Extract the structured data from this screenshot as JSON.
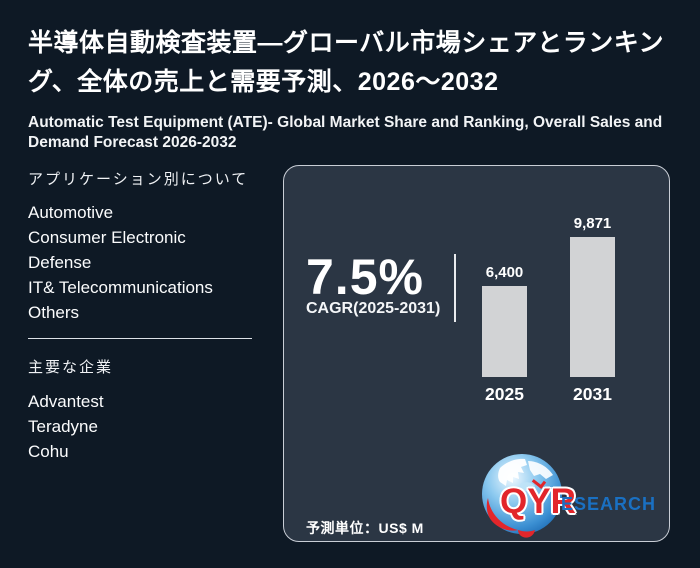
{
  "header": {
    "title_jp": "半導体自動検査装置—グローバル市場シェアとランキング、全体の売上と需要予測、2026～2032",
    "title_en": "Automatic Test Equipment (ATE)- Global Market Share and Ranking, Overall Sales and Demand Forecast 2026-2032"
  },
  "sidebar": {
    "applications_header": "アプリケーション別について",
    "applications": [
      "Automotive",
      "Consumer Electronic",
      "Defense",
      "IT& Telecommunications",
      "Others"
    ],
    "companies_header": "主要な企業",
    "companies": [
      "Advantest",
      "Teradyne",
      "Cohu"
    ]
  },
  "panel": {
    "cagr_value": "7.5%",
    "cagr_label": "CAGR(2025-2031)",
    "unit_note": "予測単位：US$ M",
    "logo": {
      "qyr": "QYR",
      "research": "ESEARCH"
    }
  },
  "chart_data": {
    "type": "bar",
    "categories": [
      "2025",
      "2031"
    ],
    "values": [
      6400,
      9871
    ],
    "value_labels": [
      "6,400",
      "9,871"
    ],
    "title": "7.5% CAGR(2025-2031)",
    "xlabel": "",
    "ylabel": "",
    "unit": "US$ M",
    "ylim": [
      0,
      9871
    ],
    "grid": false,
    "legend": false,
    "bar_color": "#d2d3d5"
  },
  "colors": {
    "bg": "#0e1925",
    "panel": "#2b3644",
    "panel_border": "#c9ced6",
    "bar_color": "#d2d3d5",
    "logo_red": "#e2262b",
    "logo_blue": "#1a70c2"
  }
}
